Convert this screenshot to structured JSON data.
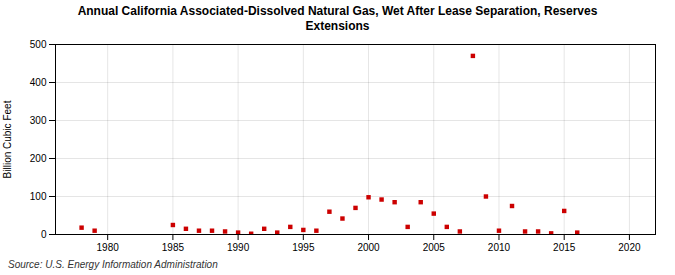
{
  "chart_data": {
    "type": "scatter",
    "title": "Annual California Associated-Dissolved Natural Gas, Wet After Lease Separation, Reserves\nExtensions",
    "ylabel": "Billion Cubic Feet",
    "caption": "Source: U.S. Energy Information Administration",
    "x": [
      1978,
      1979,
      1985,
      1986,
      1987,
      1988,
      1989,
      1990,
      1991,
      1992,
      1993,
      1994,
      1995,
      1996,
      1997,
      1998,
      1999,
      2000,
      2001,
      2002,
      2003,
      2004,
      2005,
      2006,
      2007,
      2008,
      2009,
      2010,
      2011,
      2012,
      2013,
      2014,
      2015,
      2016
    ],
    "values": [
      18,
      10,
      25,
      15,
      10,
      10,
      8,
      5,
      2,
      15,
      5,
      20,
      12,
      10,
      60,
      42,
      70,
      98,
      92,
      85,
      20,
      85,
      55,
      20,
      8,
      470,
      100,
      10,
      75,
      8,
      8,
      3,
      62,
      5
    ],
    "color": "#cc0000",
    "marker": "square",
    "xlim": [
      1976,
      2022
    ],
    "ylim": [
      0,
      500
    ],
    "xticks": [
      1980,
      1985,
      1990,
      1995,
      2000,
      2005,
      2010,
      2015,
      2020
    ],
    "yticks": [
      0,
      100,
      200,
      300,
      400,
      500
    ],
    "grid": true
  }
}
